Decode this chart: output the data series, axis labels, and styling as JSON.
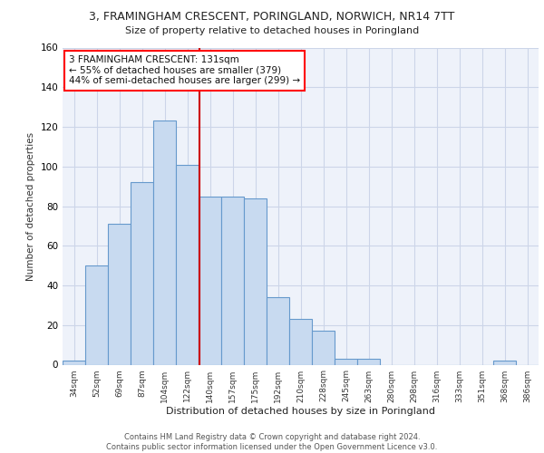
{
  "title_line1": "3, FRAMINGHAM CRESCENT, PORINGLAND, NORWICH, NR14 7TT",
  "title_line2": "Size of property relative to detached houses in Poringland",
  "xlabel": "Distribution of detached houses by size in Poringland",
  "ylabel": "Number of detached properties",
  "categories": [
    "34sqm",
    "52sqm",
    "69sqm",
    "87sqm",
    "104sqm",
    "122sqm",
    "140sqm",
    "157sqm",
    "175sqm",
    "192sqm",
    "210sqm",
    "228sqm",
    "245sqm",
    "263sqm",
    "280sqm",
    "298sqm",
    "316sqm",
    "333sqm",
    "351sqm",
    "368sqm",
    "386sqm"
  ],
  "values": [
    2,
    50,
    71,
    92,
    123,
    101,
    85,
    85,
    84,
    34,
    23,
    17,
    3,
    3,
    0,
    0,
    0,
    0,
    0,
    2,
    0
  ],
  "bar_color": "#c8daf0",
  "bar_edge_color": "#6699cc",
  "grid_color": "#ccd5e8",
  "bg_color": "#eef2fa",
  "vline_color": "#cc0000",
  "vline_position": 5.55,
  "annotation_text": "3 FRAMINGHAM CRESCENT: 131sqm\n← 55% of detached houses are smaller (379)\n44% of semi-detached houses are larger (299) →",
  "ylim": [
    0,
    160
  ],
  "yticks": [
    0,
    20,
    40,
    60,
    80,
    100,
    120,
    140,
    160
  ],
  "footer": "Contains HM Land Registry data © Crown copyright and database right 2024.\nContains public sector information licensed under the Open Government Licence v3.0."
}
